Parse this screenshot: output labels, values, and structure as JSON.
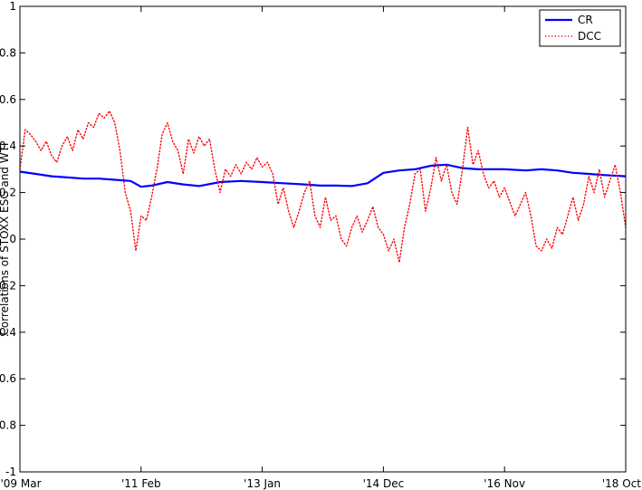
{
  "chart_data": {
    "type": "line",
    "title": "",
    "xlabel": "",
    "ylabel": "Correlations of STOXX ESG and WTI",
    "ylim": [
      -1,
      1
    ],
    "yticks": [
      "-1",
      "-0.8",
      "-0.6",
      "-0.4",
      "-0.2",
      "0",
      "0.2",
      "0.4",
      "0.6",
      "0.8",
      "1"
    ],
    "xlim": [
      "2009-03",
      "2018-10"
    ],
    "xticks": [
      {
        "label": "'09 Mar",
        "date": "2009-03"
      },
      {
        "label": "'11 Feb",
        "date": "2011-02"
      },
      {
        "label": "'13 Jan",
        "date": "2013-01"
      },
      {
        "label": "'14 Dec",
        "date": "2014-12"
      },
      {
        "label": "'16 Nov",
        "date": "2016-11"
      },
      {
        "label": "'18 Oct",
        "date": "2018-10"
      }
    ],
    "legend": {
      "position": "top-right"
    },
    "grid": false,
    "series": [
      {
        "name": "CR",
        "color": "#0000ff",
        "style": "solid",
        "points": [
          [
            "2009-03",
            0.29
          ],
          [
            "2009-06",
            0.28
          ],
          [
            "2009-09",
            0.27
          ],
          [
            "2009-12",
            0.265
          ],
          [
            "2010-03",
            0.26
          ],
          [
            "2010-06",
            0.26
          ],
          [
            "2010-09",
            0.255
          ],
          [
            "2010-12",
            0.25
          ],
          [
            "2011-02",
            0.225
          ],
          [
            "2011-04",
            0.23
          ],
          [
            "2011-07",
            0.245
          ],
          [
            "2011-10",
            0.235
          ],
          [
            "2012-01",
            0.228
          ],
          [
            "2012-05",
            0.245
          ],
          [
            "2012-09",
            0.25
          ],
          [
            "2013-01",
            0.245
          ],
          [
            "2013-05",
            0.24
          ],
          [
            "2013-09",
            0.235
          ],
          [
            "2013-12",
            0.23
          ],
          [
            "2014-03",
            0.23
          ],
          [
            "2014-06",
            0.228
          ],
          [
            "2014-09",
            0.24
          ],
          [
            "2014-12",
            0.285
          ],
          [
            "2015-03",
            0.295
          ],
          [
            "2015-06",
            0.3
          ],
          [
            "2015-09",
            0.315
          ],
          [
            "2015-12",
            0.32
          ],
          [
            "2016-03",
            0.305
          ],
          [
            "2016-06",
            0.3
          ],
          [
            "2016-09",
            0.3
          ],
          [
            "2016-11",
            0.3
          ],
          [
            "2017-03",
            0.295
          ],
          [
            "2017-06",
            0.3
          ],
          [
            "2017-09",
            0.295
          ],
          [
            "2017-12",
            0.285
          ],
          [
            "2018-03",
            0.28
          ],
          [
            "2018-06",
            0.275
          ],
          [
            "2018-10",
            0.27
          ]
        ]
      },
      {
        "name": "DCC",
        "color": "#ff0000",
        "style": "dotted",
        "points": [
          [
            "2009-03",
            0.3
          ],
          [
            "2009-04",
            0.47
          ],
          [
            "2009-05",
            0.45
          ],
          [
            "2009-06",
            0.42
          ],
          [
            "2009-07",
            0.38
          ],
          [
            "2009-08",
            0.42
          ],
          [
            "2009-09",
            0.36
          ],
          [
            "2009-10",
            0.33
          ],
          [
            "2009-11",
            0.4
          ],
          [
            "2009-12",
            0.44
          ],
          [
            "2010-01",
            0.38
          ],
          [
            "2010-02",
            0.47
          ],
          [
            "2010-03",
            0.43
          ],
          [
            "2010-04",
            0.5
          ],
          [
            "2010-05",
            0.48
          ],
          [
            "2010-06",
            0.54
          ],
          [
            "2010-07",
            0.52
          ],
          [
            "2010-08",
            0.55
          ],
          [
            "2010-09",
            0.5
          ],
          [
            "2010-10",
            0.38
          ],
          [
            "2010-11",
            0.2
          ],
          [
            "2010-12",
            0.12
          ],
          [
            "2011-01",
            -0.05
          ],
          [
            "2011-02",
            0.1
          ],
          [
            "2011-03",
            0.08
          ],
          [
            "2011-04",
            0.18
          ],
          [
            "2011-05",
            0.3
          ],
          [
            "2011-06",
            0.45
          ],
          [
            "2011-07",
            0.5
          ],
          [
            "2011-08",
            0.42
          ],
          [
            "2011-09",
            0.38
          ],
          [
            "2011-10",
            0.28
          ],
          [
            "2011-11",
            0.43
          ],
          [
            "2011-12",
            0.37
          ],
          [
            "2012-01",
            0.44
          ],
          [
            "2012-02",
            0.4
          ],
          [
            "2012-03",
            0.43
          ],
          [
            "2012-04",
            0.3
          ],
          [
            "2012-05",
            0.2
          ],
          [
            "2012-06",
            0.3
          ],
          [
            "2012-07",
            0.27
          ],
          [
            "2012-08",
            0.32
          ],
          [
            "2012-09",
            0.28
          ],
          [
            "2012-10",
            0.33
          ],
          [
            "2012-11",
            0.3
          ],
          [
            "2012-12",
            0.35
          ],
          [
            "2013-01",
            0.31
          ],
          [
            "2013-02",
            0.33
          ],
          [
            "2013-03",
            0.28
          ],
          [
            "2013-04",
            0.15
          ],
          [
            "2013-05",
            0.22
          ],
          [
            "2013-06",
            0.12
          ],
          [
            "2013-07",
            0.05
          ],
          [
            "2013-08",
            0.12
          ],
          [
            "2013-09",
            0.2
          ],
          [
            "2013-10",
            0.25
          ],
          [
            "2013-11",
            0.1
          ],
          [
            "2013-12",
            0.05
          ],
          [
            "2014-01",
            0.18
          ],
          [
            "2014-02",
            0.08
          ],
          [
            "2014-03",
            0.1
          ],
          [
            "2014-04",
            0.0
          ],
          [
            "2014-05",
            -0.03
          ],
          [
            "2014-06",
            0.05
          ],
          [
            "2014-07",
            0.1
          ],
          [
            "2014-08",
            0.03
          ],
          [
            "2014-09",
            0.08
          ],
          [
            "2014-10",
            0.14
          ],
          [
            "2014-11",
            0.05
          ],
          [
            "2014-12",
            0.02
          ],
          [
            "2015-01",
            -0.05
          ],
          [
            "2015-02",
            0.0
          ],
          [
            "2015-03",
            -0.1
          ],
          [
            "2015-04",
            0.05
          ],
          [
            "2015-05",
            0.15
          ],
          [
            "2015-06",
            0.28
          ],
          [
            "2015-07",
            0.3
          ],
          [
            "2015-08",
            0.12
          ],
          [
            "2015-09",
            0.22
          ],
          [
            "2015-10",
            0.35
          ],
          [
            "2015-11",
            0.25
          ],
          [
            "2015-12",
            0.32
          ],
          [
            "2016-01",
            0.2
          ],
          [
            "2016-02",
            0.15
          ],
          [
            "2016-03",
            0.3
          ],
          [
            "2016-04",
            0.48
          ],
          [
            "2016-05",
            0.32
          ],
          [
            "2016-06",
            0.38
          ],
          [
            "2016-07",
            0.28
          ],
          [
            "2016-08",
            0.22
          ],
          [
            "2016-09",
            0.25
          ],
          [
            "2016-10",
            0.18
          ],
          [
            "2016-11",
            0.22
          ],
          [
            "2016-12",
            0.16
          ],
          [
            "2017-01",
            0.1
          ],
          [
            "2017-02",
            0.15
          ],
          [
            "2017-03",
            0.2
          ],
          [
            "2017-04",
            0.1
          ],
          [
            "2017-05",
            -0.03
          ],
          [
            "2017-06",
            -0.05
          ],
          [
            "2017-07",
            0.0
          ],
          [
            "2017-08",
            -0.04
          ],
          [
            "2017-09",
            0.05
          ],
          [
            "2017-10",
            0.02
          ],
          [
            "2017-11",
            0.1
          ],
          [
            "2017-12",
            0.18
          ],
          [
            "2018-01",
            0.08
          ],
          [
            "2018-02",
            0.15
          ],
          [
            "2018-03",
            0.27
          ],
          [
            "2018-04",
            0.2
          ],
          [
            "2018-05",
            0.3
          ],
          [
            "2018-06",
            0.18
          ],
          [
            "2018-07",
            0.25
          ],
          [
            "2018-08",
            0.32
          ],
          [
            "2018-09",
            0.2
          ],
          [
            "2018-10",
            0.05
          ]
        ]
      }
    ]
  }
}
